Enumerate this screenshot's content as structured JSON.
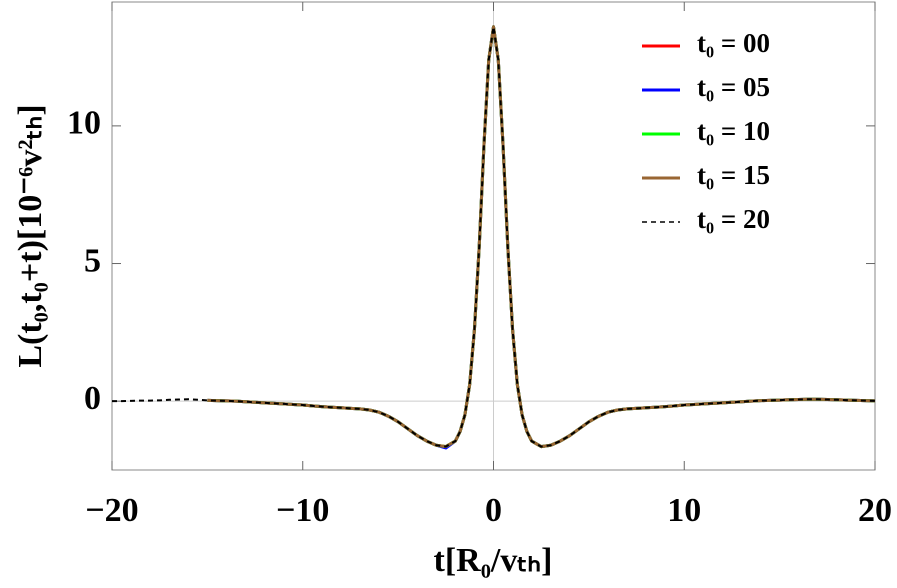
{
  "chart_data": {
    "type": "line",
    "x_label": "t[R₀/vₜₕ]",
    "y_label": "L(t₀,t₀+t)[10⁻⁶v²ₜₕ]",
    "xlim": [
      -20,
      20
    ],
    "ylim": [
      -2.5,
      14.5
    ],
    "xticks": [
      {
        "value": -20,
        "label": "−20"
      },
      {
        "value": -10,
        "label": "−10"
      },
      0,
      10,
      20
    ],
    "yticks": [
      0,
      5,
      10
    ],
    "legend": "top-right",
    "x": [
      -20,
      -19.5,
      -19,
      -18.5,
      -18,
      -17.5,
      -17,
      -16.5,
      -16,
      -15.5,
      -15,
      -14.5,
      -14,
      -13.5,
      -13,
      -12.5,
      -12,
      -11.5,
      -11,
      -10.5,
      -10,
      -9.5,
      -9,
      -8.5,
      -8,
      -7.5,
      -7,
      -6.5,
      -6,
      -5.5,
      -5,
      -4.5,
      -4,
      -3.5,
      -3,
      -2.5,
      -2,
      -1.75,
      -1.5,
      -1.25,
      -1,
      -0.75,
      -0.5,
      -0.25,
      0,
      0.25,
      0.5,
      0.75,
      1,
      1.25,
      1.5,
      1.75,
      2,
      2.5,
      3,
      3.5,
      4,
      4.5,
      5,
      5.5,
      6,
      6.5,
      7,
      7.5,
      8,
      8.5,
      9,
      9.5,
      10,
      10.5,
      11,
      11.5,
      12,
      12.5,
      13,
      13.5,
      14,
      14.5,
      15,
      15.5,
      16,
      16.5,
      17,
      17.5,
      18,
      18.5,
      19,
      19.5,
      20
    ],
    "series": [
      {
        "name": "t₀ = 00",
        "color": "#ff0000",
        "dashed": false,
        "values": [
          null,
          null,
          null,
          null,
          null,
          null,
          null,
          null,
          null,
          null,
          0.03,
          0.02,
          0.01,
          0,
          -0.02,
          -0.04,
          -0.06,
          -0.08,
          -0.1,
          -0.12,
          -0.14,
          -0.17,
          -0.2,
          -0.22,
          -0.24,
          -0.26,
          -0.28,
          -0.32,
          -0.4,
          -0.55,
          -0.75,
          -1.0,
          -1.25,
          -1.45,
          -1.6,
          -1.65,
          -1.45,
          -1.1,
          -0.5,
          0.6,
          2.6,
          5.6,
          9.3,
          12.4,
          13.6,
          12.4,
          9.3,
          5.6,
          2.6,
          0.6,
          -0.5,
          -1.1,
          -1.45,
          -1.65,
          -1.6,
          -1.45,
          -1.25,
          -1.0,
          -0.75,
          -0.55,
          -0.4,
          -0.32,
          -0.28,
          -0.26,
          -0.24,
          -0.22,
          -0.2,
          -0.17,
          -0.14,
          -0.12,
          -0.1,
          -0.08,
          -0.06,
          -0.04,
          -0.02,
          0,
          0.02,
          0.03,
          0.04,
          0.05,
          0.06,
          0.07,
          0.07,
          0.06,
          0.05,
          0.04,
          0.03,
          0.02,
          0.01
        ]
      },
      {
        "name": "t₀ = 05",
        "color": "#0000ff",
        "dashed": false,
        "values": [
          null,
          null,
          null,
          null,
          null,
          null,
          null,
          null,
          null,
          null,
          0.03,
          0.02,
          0.01,
          0,
          -0.02,
          -0.04,
          -0.06,
          -0.08,
          -0.1,
          -0.12,
          -0.14,
          -0.17,
          -0.2,
          -0.22,
          -0.24,
          -0.26,
          -0.28,
          -0.32,
          -0.4,
          -0.55,
          -0.75,
          -1.0,
          -1.25,
          -1.45,
          -1.6,
          -1.7,
          -1.45,
          -1.1,
          -0.5,
          0.6,
          2.6,
          5.6,
          9.3,
          12.4,
          13.6,
          12.4,
          9.3,
          5.6,
          2.6,
          0.6,
          -0.5,
          -1.1,
          -1.45,
          -1.65,
          -1.6,
          -1.45,
          -1.25,
          -1.0,
          -0.75,
          -0.55,
          -0.4,
          -0.32,
          -0.28,
          -0.26,
          -0.24,
          -0.22,
          -0.2,
          -0.17,
          -0.14,
          -0.12,
          -0.1,
          -0.08,
          -0.06,
          -0.04,
          -0.02,
          0,
          0.02,
          0.03,
          0.04,
          0.05,
          0.06,
          0.07,
          0.07,
          0.06,
          0.05,
          0.04,
          0.03,
          0.02,
          0.01
        ]
      },
      {
        "name": "t₀ = 10",
        "color": "#00ff00",
        "dashed": false,
        "values": [
          null,
          null,
          null,
          null,
          null,
          null,
          null,
          null,
          null,
          null,
          0.03,
          0.02,
          0.01,
          0,
          -0.02,
          -0.04,
          -0.06,
          -0.08,
          -0.1,
          -0.12,
          -0.14,
          -0.17,
          -0.2,
          -0.22,
          -0.24,
          -0.26,
          -0.28,
          -0.32,
          -0.4,
          -0.55,
          -0.75,
          -1.0,
          -1.25,
          -1.45,
          -1.6,
          -1.65,
          -1.45,
          -1.1,
          -0.5,
          0.6,
          2.6,
          5.6,
          9.3,
          12.4,
          13.6,
          12.4,
          9.3,
          5.6,
          2.6,
          0.6,
          -0.5,
          -1.1,
          -1.45,
          -1.65,
          -1.6,
          -1.45,
          -1.25,
          -1.0,
          -0.75,
          -0.55,
          -0.4,
          -0.32,
          -0.28,
          -0.26,
          -0.24,
          -0.22,
          -0.2,
          -0.17,
          -0.14,
          -0.12,
          -0.1,
          -0.08,
          -0.06,
          -0.04,
          -0.02,
          0,
          0.02,
          0.03,
          0.04,
          0.05,
          0.06,
          0.07,
          0.07,
          0.06,
          0.05,
          0.04,
          0.03,
          0.02,
          0.01
        ]
      },
      {
        "name": "t₀ = 15",
        "color": "#996633",
        "dashed": false,
        "values": [
          null,
          null,
          null,
          null,
          null,
          null,
          null,
          null,
          null,
          null,
          0.03,
          0.02,
          0.01,
          0,
          -0.02,
          -0.04,
          -0.06,
          -0.08,
          -0.1,
          -0.12,
          -0.14,
          -0.17,
          -0.2,
          -0.22,
          -0.24,
          -0.26,
          -0.28,
          -0.32,
          -0.4,
          -0.55,
          -0.75,
          -1.0,
          -1.25,
          -1.45,
          -1.6,
          -1.65,
          -1.45,
          -1.1,
          -0.5,
          0.6,
          2.6,
          5.6,
          9.3,
          12.4,
          13.6,
          12.4,
          9.3,
          5.6,
          2.6,
          0.6,
          -0.5,
          -1.1,
          -1.45,
          -1.65,
          -1.6,
          -1.45,
          -1.25,
          -1.0,
          -0.75,
          -0.55,
          -0.4,
          -0.32,
          -0.28,
          -0.26,
          -0.24,
          -0.22,
          -0.2,
          -0.17,
          -0.14,
          -0.12,
          -0.1,
          -0.08,
          -0.06,
          -0.04,
          -0.02,
          0,
          0.02,
          0.03,
          0.04,
          0.05,
          0.06,
          0.07,
          0.07,
          0.06,
          0.05,
          0.04,
          0.03,
          0.02,
          0.01
        ]
      },
      {
        "name": "t₀ = 20",
        "color": "#000000",
        "dashed": true,
        "values": [
          0,
          0,
          0.01,
          0.02,
          0.02,
          0.03,
          0.05,
          0.06,
          0.07,
          0.05,
          0.03,
          0.02,
          0.01,
          0,
          -0.02,
          -0.04,
          -0.06,
          -0.08,
          -0.1,
          -0.12,
          -0.14,
          -0.17,
          -0.2,
          -0.22,
          -0.24,
          -0.26,
          -0.28,
          -0.32,
          -0.4,
          -0.55,
          -0.75,
          -1.0,
          -1.25,
          -1.45,
          -1.6,
          -1.65,
          -1.45,
          -1.1,
          -0.5,
          0.6,
          2.6,
          5.6,
          9.3,
          12.4,
          13.6,
          12.4,
          9.3,
          5.6,
          2.6,
          0.6,
          -0.5,
          -1.1,
          -1.45,
          -1.65,
          -1.6,
          -1.45,
          -1.25,
          -1.0,
          -0.75,
          -0.55,
          -0.4,
          -0.32,
          -0.28,
          -0.26,
          -0.24,
          -0.22,
          -0.2,
          -0.17,
          -0.14,
          -0.12,
          -0.1,
          -0.08,
          -0.06,
          -0.04,
          -0.02,
          0,
          0.02,
          0.03,
          0.04,
          0.05,
          0.06,
          0.07,
          0.07,
          0.06,
          0.05,
          0.04,
          0.03,
          0.02,
          0.01
        ]
      }
    ]
  }
}
